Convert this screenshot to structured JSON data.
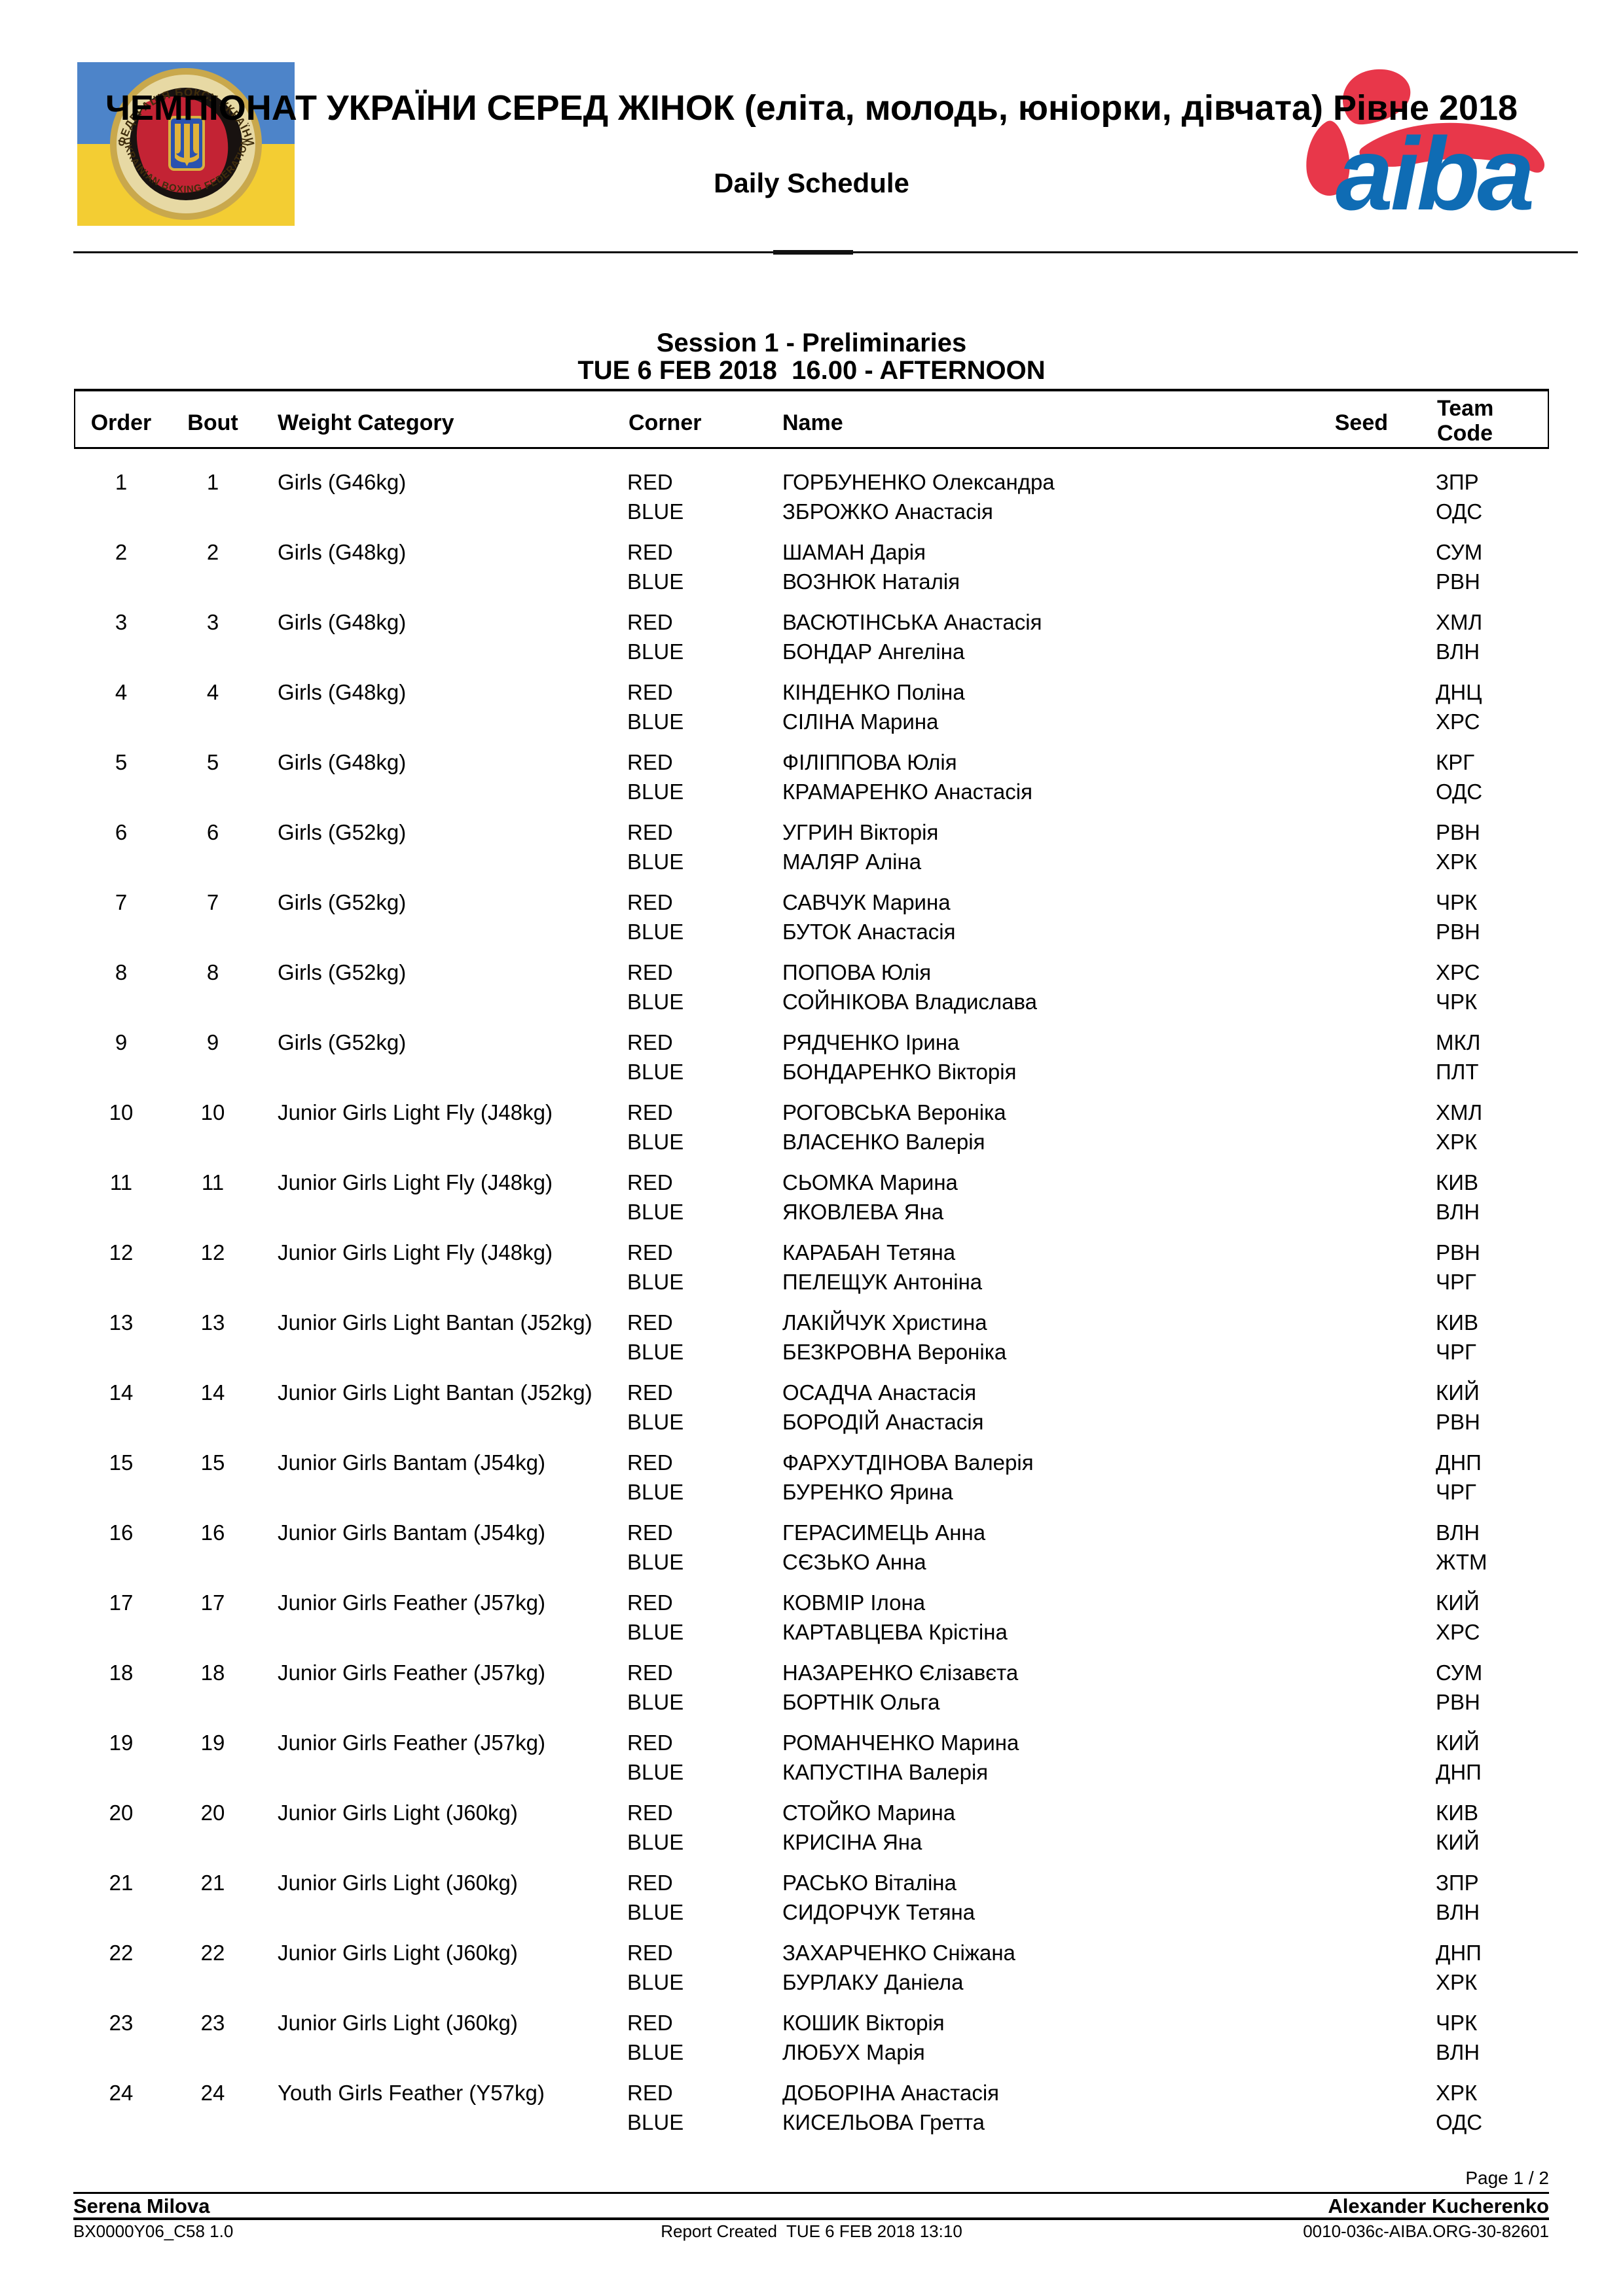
{
  "header": {
    "title": "ЧЕМПІОНАТ УКРАЇНИ СЕРЕД ЖІНОК (еліта, молодь, юніорки, дівчата) Рівне 2018",
    "subtitle": "Daily Schedule"
  },
  "logos": {
    "federation": {
      "ring_text_top": "ФЕДЕРАЦІЯ БОКСУ УКРАЇНИ",
      "ring_text_bottom": "UKRAINIAN BOXING FEDERATION",
      "flag_blue": "#4d84c9",
      "flag_yellow": "#f3cd33"
    },
    "aiba": {
      "text": "aiba",
      "red": "#e8374a",
      "blue": "#0f6cb4"
    }
  },
  "session": {
    "title": "Session 1 - Preliminaries",
    "datetime": "TUE 6 FEB 2018  16.00 - AFTERNOON"
  },
  "table": {
    "headers": {
      "order": "Order",
      "bout": "Bout",
      "weight": "Weight Category",
      "corner": "Corner",
      "name": "Name",
      "seed": "Seed",
      "team_line1": "Team",
      "team_line2": "Code"
    },
    "corner_labels": {
      "red": "RED",
      "blue": "BLUE"
    },
    "bouts": [
      {
        "order": "1",
        "bout": "1",
        "weight": "Girls (G46kg)",
        "red": {
          "name": "ГОРБУНЕНКО Олександра",
          "team": "ЗПР"
        },
        "blue": {
          "name": "ЗБРОЖКО Анастасія",
          "team": "ОДС"
        }
      },
      {
        "order": "2",
        "bout": "2",
        "weight": "Girls (G48kg)",
        "red": {
          "name": "ШАМАН Дарія",
          "team": "СУМ"
        },
        "blue": {
          "name": "ВОЗНЮК Наталія",
          "team": "РВН"
        }
      },
      {
        "order": "3",
        "bout": "3",
        "weight": "Girls (G48kg)",
        "red": {
          "name": "ВАСЮТІНСЬКА Анастасія",
          "team": "ХМЛ"
        },
        "blue": {
          "name": "БОНДАР Ангеліна",
          "team": "ВЛН"
        }
      },
      {
        "order": "4",
        "bout": "4",
        "weight": "Girls (G48kg)",
        "red": {
          "name": "КІНДЕНКО Поліна",
          "team": "ДНЦ"
        },
        "blue": {
          "name": "СІЛІНА Марина",
          "team": "ХРС"
        }
      },
      {
        "order": "5",
        "bout": "5",
        "weight": "Girls (G48kg)",
        "red": {
          "name": "ФІЛІППОВА Юлія",
          "team": "КРГ"
        },
        "blue": {
          "name": "КРАМАРЕНКО Анастасія",
          "team": "ОДС"
        }
      },
      {
        "order": "6",
        "bout": "6",
        "weight": "Girls (G52kg)",
        "red": {
          "name": "УГРИН Вікторія",
          "team": "РВН"
        },
        "blue": {
          "name": "МАЛЯР Аліна",
          "team": "ХРК"
        }
      },
      {
        "order": "7",
        "bout": "7",
        "weight": "Girls (G52kg)",
        "red": {
          "name": "САВЧУК Марина",
          "team": "ЧРК"
        },
        "blue": {
          "name": "БУТОК Анастасія",
          "team": "РВН"
        }
      },
      {
        "order": "8",
        "bout": "8",
        "weight": "Girls (G52kg)",
        "red": {
          "name": "ПОПОВА Юлія",
          "team": "ХРС"
        },
        "blue": {
          "name": "СОЙНІКОВА Владислава",
          "team": "ЧРК"
        }
      },
      {
        "order": "9",
        "bout": "9",
        "weight": "Girls (G52kg)",
        "red": {
          "name": "РЯДЧЕНКО Ірина",
          "team": "МКЛ"
        },
        "blue": {
          "name": "БОНДАРЕНКО Вікторія",
          "team": "ПЛТ"
        }
      },
      {
        "order": "10",
        "bout": "10",
        "weight": "Junior Girls Light Fly (J48kg)",
        "red": {
          "name": "РОГОВСЬКА Вероніка",
          "team": "ХМЛ"
        },
        "blue": {
          "name": "ВЛАСЕНКО Валерія",
          "team": "ХРК"
        }
      },
      {
        "order": "11",
        "bout": "11",
        "weight": "Junior Girls Light Fly (J48kg)",
        "red": {
          "name": "СЬОМКА Марина",
          "team": "КИВ"
        },
        "blue": {
          "name": "ЯКОВЛЕВА Яна",
          "team": "ВЛН"
        }
      },
      {
        "order": "12",
        "bout": "12",
        "weight": "Junior Girls Light Fly (J48kg)",
        "red": {
          "name": "КАРАБАН Тетяна",
          "team": "РВН"
        },
        "blue": {
          "name": "ПЕЛЕЩУК Антоніна",
          "team": "ЧРГ"
        }
      },
      {
        "order": "13",
        "bout": "13",
        "weight": "Junior Girls Light Bantan (J52kg)",
        "red": {
          "name": "ЛАКІЙЧУК Христина",
          "team": "КИВ"
        },
        "blue": {
          "name": "БЕЗКРОВНА Вероніка",
          "team": "ЧРГ"
        }
      },
      {
        "order": "14",
        "bout": "14",
        "weight": "Junior Girls Light Bantan (J52kg)",
        "red": {
          "name": "ОСАДЧА Анастасія",
          "team": "КИЙ"
        },
        "blue": {
          "name": "БОРОДІЙ Анастасія",
          "team": "РВН"
        }
      },
      {
        "order": "15",
        "bout": "15",
        "weight": "Junior Girls Bantam (J54kg)",
        "red": {
          "name": "ФАРХУТДІНОВА Валерія",
          "team": "ДНП"
        },
        "blue": {
          "name": "БУРЕНКО Ярина",
          "team": "ЧРГ"
        }
      },
      {
        "order": "16",
        "bout": "16",
        "weight": "Junior Girls Bantam (J54kg)",
        "red": {
          "name": "ГЕРАСИМЕЦЬ Анна",
          "team": "ВЛН"
        },
        "blue": {
          "name": "СЄЗЬКО Анна",
          "team": "ЖТМ"
        }
      },
      {
        "order": "17",
        "bout": "17",
        "weight": "Junior Girls Feather (J57kg)",
        "red": {
          "name": "КОВМІР Ілона",
          "team": "КИЙ"
        },
        "blue": {
          "name": "КАРТАВЦЕВА Крістіна",
          "team": "ХРС"
        }
      },
      {
        "order": "18",
        "bout": "18",
        "weight": "Junior Girls Feather (J57kg)",
        "red": {
          "name": "НАЗАРЕНКО Єлізавєта",
          "team": "СУМ"
        },
        "blue": {
          "name": "БОРТНІК Ольга",
          "team": "РВН"
        }
      },
      {
        "order": "19",
        "bout": "19",
        "weight": "Junior Girls Feather (J57kg)",
        "red": {
          "name": "РОМАНЧЕНКО Марина",
          "team": "КИЙ"
        },
        "blue": {
          "name": "КАПУСТІНА Валерія",
          "team": "ДНП"
        }
      },
      {
        "order": "20",
        "bout": "20",
        "weight": "Junior Girls Light (J60kg)",
        "red": {
          "name": "СТОЙКО Марина",
          "team": "КИВ"
        },
        "blue": {
          "name": "КРИСІНА Яна",
          "team": "КИЙ"
        }
      },
      {
        "order": "21",
        "bout": "21",
        "weight": "Junior Girls Light (J60kg)",
        "red": {
          "name": "РАСЬКО Віталіна",
          "team": "ЗПР"
        },
        "blue": {
          "name": "СИДОРЧУК Тетяна",
          "team": "ВЛН"
        }
      },
      {
        "order": "22",
        "bout": "22",
        "weight": "Junior Girls Light (J60kg)",
        "red": {
          "name": "ЗАХАРЧЕНКО Сніжана",
          "team": "ДНП"
        },
        "blue": {
          "name": "БУРЛАКУ Даніела",
          "team": "ХРК"
        }
      },
      {
        "order": "23",
        "bout": "23",
        "weight": "Junior Girls Light (J60kg)",
        "red": {
          "name": "КОШИК Вікторія",
          "team": "ЧРК"
        },
        "blue": {
          "name": "ЛЮБУХ Марія",
          "team": "ВЛН"
        }
      },
      {
        "order": "24",
        "bout": "24",
        "weight": "Youth Girls Feather (Y57kg)",
        "red": {
          "name": "ДОБОРІНА Анастасія",
          "team": "ХРК"
        },
        "blue": {
          "name": "КИСЕЛЬОВА Гретта",
          "team": "ОДС"
        }
      }
    ]
  },
  "footer": {
    "page_info": "Page 1 / 2",
    "official_left": "Serena Milova",
    "official_right": "Alexander Kucherenko",
    "doc_code": "BX0000Y06_C58 1.0",
    "report_created": "Report Created  TUE 6 FEB 2018 13:10",
    "ref_code": "0010-036c-AIBA.ORG-30-82601"
  }
}
